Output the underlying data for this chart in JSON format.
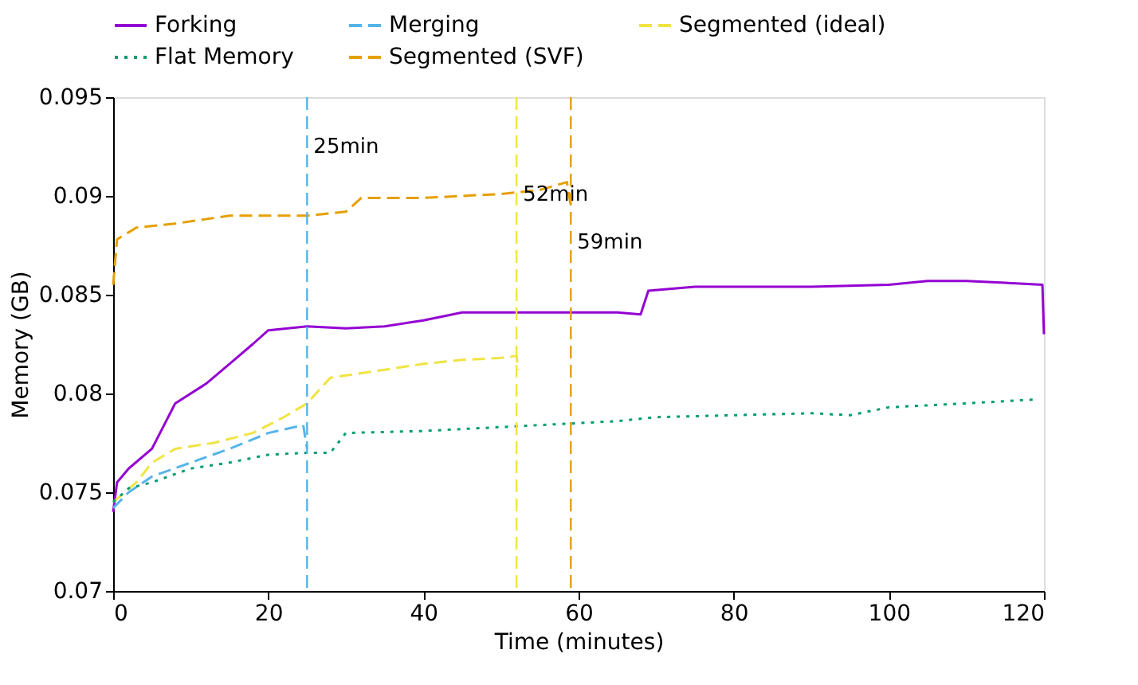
{
  "chart_data": {
    "type": "line",
    "xlabel": "Time (minutes)",
    "ylabel": "Memory (GB)",
    "xlim": [
      0,
      120
    ],
    "xticks": [
      0,
      20,
      40,
      60,
      80,
      100,
      120
    ],
    "ylim": [
      0.07,
      0.095
    ],
    "yticks": [
      0.07,
      0.075,
      0.08,
      0.085,
      0.09,
      0.095
    ],
    "grid": false,
    "legend": "top",
    "series": [
      {
        "name": "Forking",
        "color": "#9400d3",
        "line_style": "solid",
        "x": [
          0,
          0.5,
          2,
          5,
          8,
          12,
          15,
          18,
          20,
          25,
          30,
          35,
          40,
          45,
          50,
          55,
          60,
          65,
          68,
          69,
          75,
          80,
          90,
          100,
          105,
          110,
          115,
          119.8,
          120
        ],
        "values": [
          0.074,
          0.0755,
          0.0762,
          0.0772,
          0.0795,
          0.0805,
          0.0815,
          0.0825,
          0.0832,
          0.0834,
          0.0833,
          0.0834,
          0.0837,
          0.0841,
          0.0841,
          0.0841,
          0.0841,
          0.0841,
          0.084,
          0.0852,
          0.0854,
          0.0854,
          0.0854,
          0.0855,
          0.0857,
          0.0857,
          0.0856,
          0.0855,
          0.083
        ]
      },
      {
        "name": "Merging",
        "color": "#56b4e9",
        "line_style": "dashed",
        "x": [
          0,
          2,
          5,
          10,
          15,
          20,
          24.5,
          25
        ],
        "values": [
          0.0742,
          0.075,
          0.0758,
          0.0765,
          0.0772,
          0.078,
          0.0784,
          0.0772
        ]
      },
      {
        "name": "Segmented (ideal)",
        "color": "#f0e442",
        "line_style": "dashed",
        "x": [
          0,
          3,
          5,
          8,
          13,
          18,
          22,
          25,
          28,
          35,
          40,
          45,
          50,
          52,
          52.2
        ],
        "values": [
          0.0745,
          0.0755,
          0.0765,
          0.0772,
          0.0775,
          0.078,
          0.0788,
          0.0795,
          0.0808,
          0.0812,
          0.0815,
          0.0817,
          0.0818,
          0.0819,
          0.0812
        ]
      },
      {
        "name": "Flat Memory",
        "color": "#009e73",
        "line_style": "dotted",
        "x": [
          0,
          2,
          5,
          10,
          15,
          20,
          25,
          28,
          30,
          40,
          50,
          60,
          65,
          70,
          80,
          90,
          95,
          100,
          110,
          119
        ],
        "values": [
          0.0745,
          0.0752,
          0.0755,
          0.0762,
          0.0765,
          0.0769,
          0.077,
          0.077,
          0.078,
          0.0781,
          0.0783,
          0.0785,
          0.0786,
          0.0788,
          0.0789,
          0.079,
          0.0789,
          0.0793,
          0.0795,
          0.0797
        ]
      },
      {
        "name": "Segmented (SVF)",
        "color": "#e69f00",
        "line_style": "dashed",
        "x": [
          0,
          0.5,
          3,
          8,
          15,
          25,
          30,
          32,
          40,
          50,
          55,
          58.5,
          59
        ],
        "values": [
          0.0855,
          0.0878,
          0.0884,
          0.0886,
          0.089,
          0.089,
          0.0892,
          0.0899,
          0.0899,
          0.0901,
          0.0903,
          0.0907,
          0.0895
        ]
      }
    ],
    "ref_lines": [
      {
        "axis": "x",
        "value": 25,
        "label": "25min",
        "color": "#56b4e9",
        "line_style": "dashed"
      },
      {
        "axis": "x",
        "value": 52,
        "label": "52min",
        "color": "#f0e442",
        "line_style": "dashed"
      },
      {
        "axis": "x",
        "value": 59,
        "label": "59min",
        "color": "#e69f00",
        "line_style": "dashed"
      }
    ]
  }
}
